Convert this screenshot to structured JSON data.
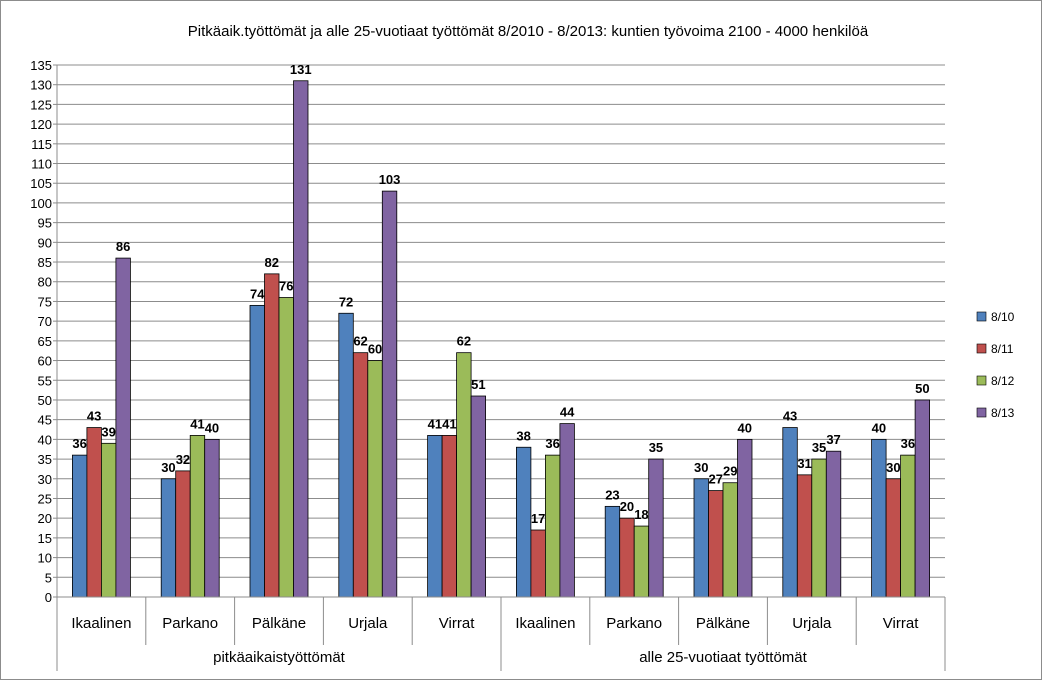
{
  "chart_data": {
    "type": "bar",
    "title": "Pitkäaik.työttömät ja alle 25-vuotiaat työttömät 8/2010 - 8/2013: kuntien työvoima 2100 - 4000 henkilöä",
    "xlabel": "",
    "ylabel": "",
    "ylim": [
      0,
      135
    ],
    "ytick_step": 5,
    "grid": true,
    "legend_position": "right",
    "groups": [
      {
        "label": "pitkäaikaistyöttömät",
        "categories": [
          "Ikaalinen",
          "Parkano",
          "Pälkäne",
          "Urjala",
          "Virrat"
        ]
      },
      {
        "label": "alle 25-vuotiaat työttömät",
        "categories": [
          "Ikaalinen",
          "Parkano",
          "Pälkäne",
          "Urjala",
          "Virrat"
        ]
      }
    ],
    "categories": [
      "Ikaalinen",
      "Parkano",
      "Pälkäne",
      "Urjala",
      "Virrat",
      "Ikaalinen",
      "Parkano",
      "Pälkäne",
      "Urjala",
      "Virrat"
    ],
    "series": [
      {
        "name": "8/10",
        "color": "#4F81BD",
        "values": [
          36,
          30,
          74,
          72,
          41,
          38,
          23,
          30,
          43,
          40
        ]
      },
      {
        "name": "8/11",
        "color": "#C0504D",
        "values": [
          43,
          32,
          82,
          62,
          41,
          17,
          20,
          27,
          31,
          30
        ]
      },
      {
        "name": "8/12",
        "color": "#9BBB59",
        "values": [
          39,
          41,
          76,
          60,
          62,
          36,
          18,
          29,
          35,
          36
        ]
      },
      {
        "name": "8/13",
        "color": "#8064A2",
        "values": [
          86,
          40,
          131,
          103,
          51,
          44,
          35,
          40,
          37,
          50
        ]
      }
    ]
  }
}
